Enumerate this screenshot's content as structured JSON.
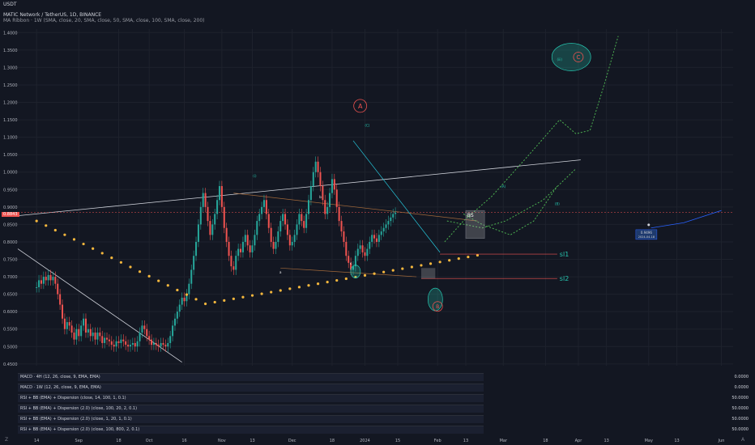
{
  "header": {
    "quote": "USDT",
    "symbol_line": "MATIC Network / TetherUS, 1D, BINANCE",
    "indicator_line": "MA Ribbon · 1W (SMA, close, 20, SMA, close, 50, SMA, close, 100, SMA, close, 200)"
  },
  "colors": {
    "background": "#131722",
    "up": "#26a69a",
    "down": "#ef5350",
    "teal_wave": "#26c6b0",
    "green_projection": "#4caf50",
    "blue_projection": "#2962ff",
    "support_dots": "#f5b73d"
  },
  "chart_data": {
    "type": "candlestick",
    "symbol": "MATIC Network / TetherUS",
    "timeframe": "1D",
    "exchange": "BINANCE",
    "price_axis": [
      {
        "label": "1.4000",
        "v": 1.4
      },
      {
        "label": "1.3500",
        "v": 1.35
      },
      {
        "label": "1.3000",
        "v": 1.3
      },
      {
        "label": "1.2500",
        "v": 1.25
      },
      {
        "label": "1.2000",
        "v": 1.2
      },
      {
        "label": "1.1500",
        "v": 1.15
      },
      {
        "label": "1.1000",
        "v": 1.1
      },
      {
        "label": "1.0500",
        "v": 1.05
      },
      {
        "label": "1.0000",
        "v": 1.0
      },
      {
        "label": "0.9500",
        "v": 0.95
      },
      {
        "label": "0.9000",
        "v": 0.9
      },
      {
        "label": "0.8500",
        "v": 0.85
      },
      {
        "label": "0.8000",
        "v": 0.8
      },
      {
        "label": "0.7500",
        "v": 0.75
      },
      {
        "label": "0.7000",
        "v": 0.7
      },
      {
        "label": "0.6500",
        "v": 0.65
      },
      {
        "label": "0.6000",
        "v": 0.6
      },
      {
        "label": "0.5500",
        "v": 0.55
      },
      {
        "label": "0.5000",
        "v": 0.5
      },
      {
        "label": "0.4500",
        "v": 0.45
      }
    ],
    "ylim": [
      0.445,
      1.41
    ],
    "time_axis": [
      {
        "label": "14",
        "d": 0
      },
      {
        "label": "Sep",
        "d": 18
      },
      {
        "label": "18",
        "d": 35
      },
      {
        "label": "Oct",
        "d": 48
      },
      {
        "label": "16",
        "d": 63
      },
      {
        "label": "Nov",
        "d": 79
      },
      {
        "label": "13",
        "d": 92
      },
      {
        "label": "Dec",
        "d": 109
      },
      {
        "label": "18",
        "d": 126
      },
      {
        "label": "2024",
        "d": 140
      },
      {
        "label": "15",
        "d": 154
      },
      {
        "label": "Feb",
        "d": 171
      },
      {
        "label": "13",
        "d": 183
      },
      {
        "label": "Mar",
        "d": 199
      },
      {
        "label": "18",
        "d": 217
      },
      {
        "label": "Apr",
        "d": 231
      },
      {
        "label": "13",
        "d": 243
      },
      {
        "label": "May",
        "d": 261
      },
      {
        "label": "13",
        "d": 273
      },
      {
        "label": "Jun",
        "d": 292
      }
    ],
    "xlim": [
      -8,
      297
    ],
    "current_price_label": "0.8843",
    "current_price": 0.8843,
    "closes": [
      0.67,
      0.69,
      0.68,
      0.7,
      0.69,
      0.705,
      0.69,
      0.7,
      0.68,
      0.65,
      0.62,
      0.58,
      0.55,
      0.57,
      0.56,
      0.54,
      0.52,
      0.55,
      0.53,
      0.56,
      0.58,
      0.54,
      0.55,
      0.53,
      0.54,
      0.52,
      0.54,
      0.53,
      0.51,
      0.525,
      0.52,
      0.515,
      0.505,
      0.5,
      0.515,
      0.51,
      0.52,
      0.515,
      0.505,
      0.5,
      0.505,
      0.51,
      0.5,
      0.515,
      0.54,
      0.56,
      0.55,
      0.53,
      0.52,
      0.505,
      0.51,
      0.505,
      0.5,
      0.51,
      0.505,
      0.5,
      0.51,
      0.53,
      0.56,
      0.58,
      0.6,
      0.62,
      0.64,
      0.63,
      0.65,
      0.68,
      0.72,
      0.76,
      0.8,
      0.85,
      0.9,
      0.94,
      0.9,
      0.86,
      0.82,
      0.85,
      0.88,
      0.92,
      0.96,
      0.9,
      0.84,
      0.8,
      0.76,
      0.73,
      0.72,
      0.76,
      0.78,
      0.77,
      0.8,
      0.82,
      0.79,
      0.77,
      0.79,
      0.82,
      0.86,
      0.88,
      0.9,
      0.92,
      0.88,
      0.84,
      0.8,
      0.78,
      0.8,
      0.83,
      0.86,
      0.88,
      0.85,
      0.82,
      0.79,
      0.8,
      0.82,
      0.85,
      0.88,
      0.86,
      0.84,
      0.88,
      0.92,
      0.96,
      1.0,
      1.03,
      1.0,
      0.96,
      0.92,
      0.88,
      0.9,
      0.94,
      0.98,
      0.95,
      0.9,
      0.86,
      0.83,
      0.8,
      0.76,
      0.74,
      0.72,
      0.73,
      0.76,
      0.78,
      0.79,
      0.77,
      0.76,
      0.78,
      0.8,
      0.82,
      0.81,
      0.8,
      0.82,
      0.83,
      0.84,
      0.85,
      0.86,
      0.87,
      0.88,
      0.884
    ],
    "labels": {
      "A_circle": "A",
      "B_circle": "B",
      "C_circle_target": "C",
      "wave_i": "(i)",
      "wave_ii": "(ii)",
      "wave_iii": "(iii)",
      "wave_A": "(A)",
      "wave_B": "(B)",
      "wave_C_top": "(C)",
      "b_label": "b",
      "a_label": "a",
      "c_label": "c",
      "BS_box": "BS",
      "sl1": "sl1",
      "sl2": "sl2",
      "target_box_line1": "0.9496",
      "target_box_line2": "2024-04-18"
    }
  },
  "indicators": [
    {
      "label": "MACD · 4H (12, 26, close, 9, EMA, EMA)",
      "value": "0.0000"
    },
    {
      "label": "MACD · 1W (12, 26, close, 9, EMA, EMA)",
      "value": "0.0000"
    },
    {
      "label": "RSI + BB (EMA) + Dispersion (close, 14, 100, 1, 0.1)",
      "value": "50.0000"
    },
    {
      "label": "RSI + BB (EMA) + Dispersion (2.0) (close, 100, 20, 2, 0.1)",
      "value": "50.0000"
    },
    {
      "label": "RSI + BB (EMA) + Dispersion (2.0) (close, 1, 20, 1, 0.1)",
      "value": "50.0000"
    },
    {
      "label": "RSI + BB (EMA) + Dispersion (2.0) (close, 100, 800, 2, 0.1)",
      "value": "50.0000"
    }
  ],
  "controls": {
    "flag_left": "Z",
    "flag_right": "A"
  }
}
